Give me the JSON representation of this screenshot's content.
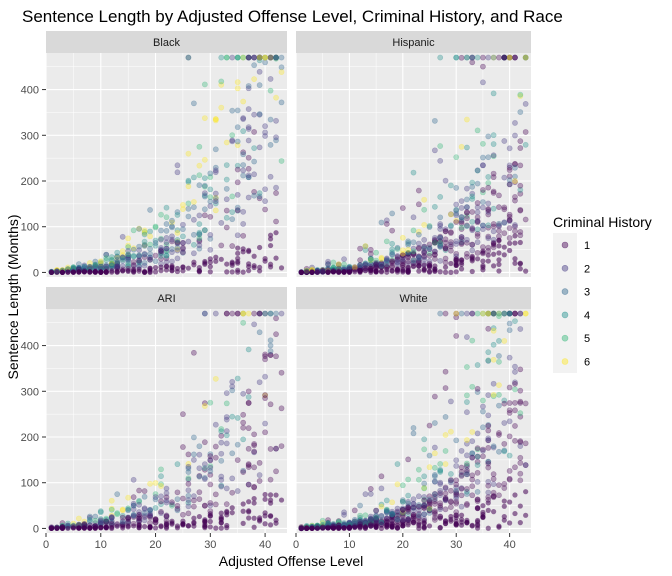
{
  "chart_data": {
    "type": "scatter",
    "title": "Sentence Length by Adjusted Offense Level, Criminal History, and Race",
    "xlabel": "Adjusted Offense Level",
    "ylabel": "Sentence Length (Months)",
    "xlim": [
      0,
      44
    ],
    "ylim": [
      -10,
      480
    ],
    "x_ticks": [
      0,
      10,
      20,
      30,
      40
    ],
    "y_ticks": [
      0,
      100,
      200,
      300,
      400
    ],
    "grid": true,
    "facets": [
      "Black",
      "Hispanic",
      "ARI",
      "White"
    ],
    "legend": {
      "title": "Criminal History",
      "placement": "right",
      "entries": [
        "1",
        "2",
        "3",
        "4",
        "5",
        "6"
      ]
    },
    "series_colors": [
      "#440154",
      "#443a83",
      "#31688e",
      "#21908d",
      "#35b779",
      "#fde725"
    ],
    "point_alpha": 0.35,
    "trend_points": [
      [
        0,
        0
      ],
      [
        10,
        10
      ],
      [
        15,
        25
      ],
      [
        20,
        45
      ],
      [
        25,
        75
      ],
      [
        30,
        130
      ],
      [
        35,
        215
      ],
      [
        40,
        330
      ],
      [
        43,
        400
      ]
    ],
    "max_sentence": 470
  },
  "colors": {
    "panel_background": "#ebebeb",
    "strip_background": "#d9d9d9",
    "grid_major": "#ffffff"
  }
}
